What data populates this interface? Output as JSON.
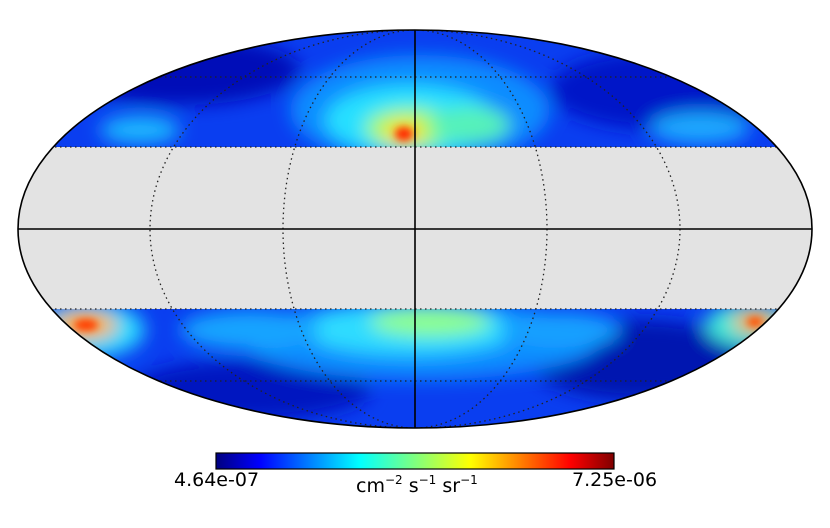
{
  "map": {
    "projection": "mollweide",
    "masked_band": "galactic-plane",
    "mask_color": "#e3e3e3",
    "graticule": "dotted",
    "colormap": "jet"
  },
  "colorbar": {
    "min_label": "4.64e-07",
    "max_label": "7.25e-06",
    "units": {
      "cm": "cm",
      "cm_exp": "−2",
      "s": "s",
      "s_exp": "−1",
      "sr": "sr",
      "sr_exp": "−1"
    },
    "colors": [
      "#00007f",
      "#0000ff",
      "#007fff",
      "#00ffff",
      "#7fff7f",
      "#ffff00",
      "#ff7f00",
      "#ff0000",
      "#7f0000"
    ]
  }
}
